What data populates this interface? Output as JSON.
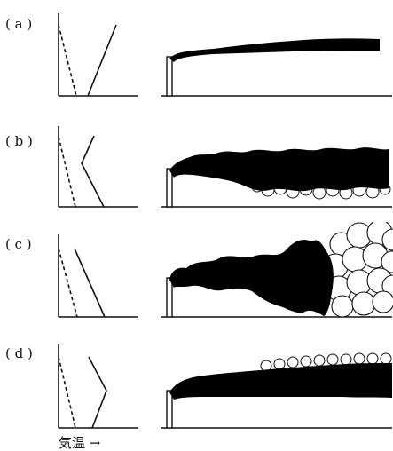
{
  "panels": [
    {
      "label": "( a )"
    },
    {
      "label": "( b )"
    },
    {
      "label": "( c )"
    },
    {
      "label": "( d )"
    }
  ],
  "x_axis_label": "気温 →"
}
